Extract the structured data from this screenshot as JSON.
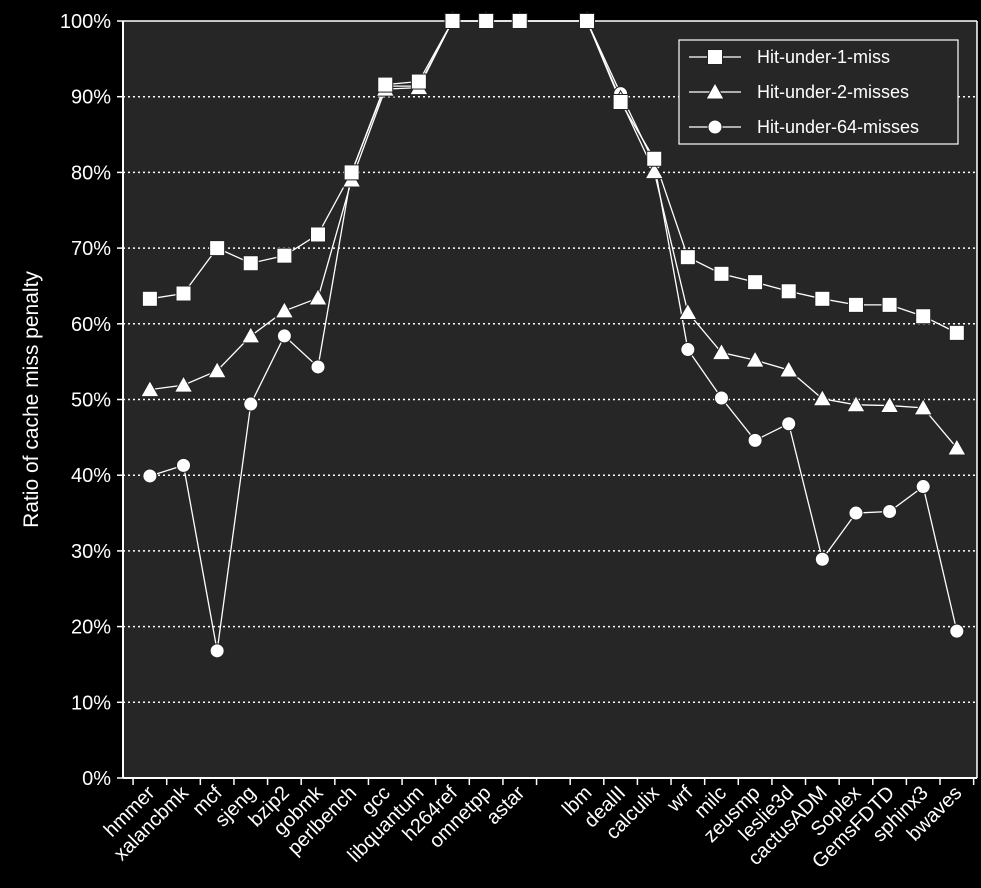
{
  "chart_data": {
    "type": "line",
    "title": "",
    "xlabel": "",
    "ylabel": "Ratio of cache miss penalty",
    "ylim": [
      0,
      100
    ],
    "yticks": [
      0,
      10,
      20,
      30,
      40,
      50,
      60,
      70,
      80,
      90,
      100
    ],
    "ytick_suffix": "%",
    "grid": "horizontal dotted",
    "legend_position": "top-right",
    "background": "#262626",
    "outer_background": "#000000",
    "foreground": "#ffffff",
    "categories": [
      "hmmer",
      "xalancbmk",
      "mcf",
      "sjeng",
      "bzip2",
      "gobmk",
      "perlbench",
      "gcc",
      "libquantum",
      "h264ref",
      "omnetpp",
      "astar",
      "lbm",
      "dealII",
      "calculix",
      "wrf",
      "milc",
      "zeusmp",
      "leslie3d",
      "cactusADM",
      "Soplex",
      "GemsFDTD",
      "sphinx3",
      "bwaves"
    ],
    "x": [
      1,
      2,
      3,
      4,
      5,
      6,
      7,
      8,
      9,
      10,
      11,
      12,
      14,
      15,
      16,
      17,
      18,
      19,
      20,
      21,
      22,
      23,
      24,
      25
    ],
    "series": [
      {
        "name": "Hit-under-1-miss",
        "marker": "square",
        "values": [
          63.3,
          64,
          70,
          68,
          69,
          71.8,
          80,
          91.6,
          92,
          100,
          100,
          100,
          100,
          89.3,
          81.8,
          68.8,
          66.6,
          65.5,
          64.3,
          63.3,
          62.5,
          62.5,
          61,
          58.8
        ]
      },
      {
        "name": "Hit-under-2-misses",
        "marker": "triangle",
        "values": [
          51.3,
          51.9,
          53.8,
          58.4,
          61.7,
          63.4,
          79,
          91,
          91.2,
          100,
          100,
          100,
          100,
          89.6,
          80.1,
          61.5,
          56.2,
          55.2,
          53.9,
          50.1,
          49.3,
          49.2,
          48.9,
          43.6
        ]
      },
      {
        "name": "Hit-under-64-misses",
        "marker": "circle",
        "values": [
          39.9,
          41.3,
          16.8,
          49.4,
          58.4,
          54.3,
          80,
          91.4,
          91.4,
          100,
          100,
          100,
          100,
          90.4,
          81.2,
          56.6,
          50.2,
          44.6,
          46.8,
          28.9,
          35,
          35.2,
          38.5,
          19.4
        ]
      }
    ]
  }
}
